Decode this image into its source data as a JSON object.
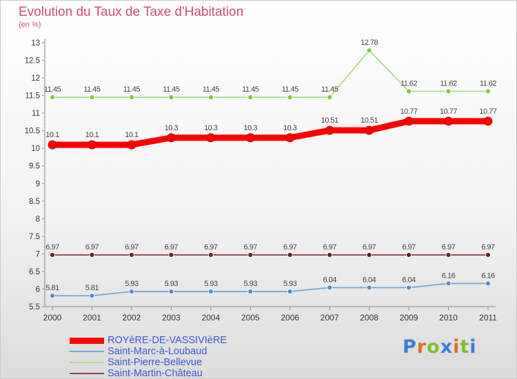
{
  "header": {
    "title": "Evolution du Taux de Taxe d'Habitation",
    "unit": "(en %)"
  },
  "chart_data": {
    "type": "line",
    "title": "Evolution du Taux de Taxe d'Habitation",
    "ylabel": "(en %)",
    "xlabel": "",
    "x": [
      "2000",
      "2001",
      "2002",
      "2003",
      "2004",
      "2005",
      "2006",
      "2007",
      "2008",
      "2009",
      "2010",
      "2011"
    ],
    "ylim": [
      5.5,
      13
    ],
    "yticks": [
      "5.5",
      "6",
      "6.5",
      "7",
      "7.5",
      "8",
      "8.5",
      "9",
      "9.5",
      "10",
      "10.5",
      "11",
      "11.5",
      "12",
      "12.5",
      "13"
    ],
    "grid": false,
    "legend_position": "bottom-left",
    "series": [
      {
        "name": "ROYèRE-DE-VASSIVIèRE",
        "values": [
          10.1,
          10.1,
          10.1,
          10.3,
          10.3,
          10.3,
          10.3,
          10.51,
          10.51,
          10.77,
          10.77,
          10.77
        ],
        "labels": [
          "10.1",
          "10.1",
          "10.1",
          "10.3",
          "10.3",
          "10.3",
          "10.3",
          "10.51",
          "10.51",
          "10.77",
          "10.77",
          "10.77"
        ],
        "color": "#ff0000",
        "marker_color": "#ff0000",
        "highlight": true
      },
      {
        "name": "Saint-Marc-à-Loubaud",
        "values": [
          5.81,
          5.81,
          5.93,
          5.93,
          5.93,
          5.93,
          5.93,
          6.04,
          6.04,
          6.04,
          6.16,
          6.16
        ],
        "labels": [
          "5.81",
          "5.81",
          "5.93",
          "5.93",
          "5.93",
          "5.93",
          "5.93",
          "6.04",
          "6.04",
          "6.04",
          "6.16",
          "6.16"
        ],
        "color": "#7ba7d4",
        "marker_color": "#4d8fd1",
        "highlight": false
      },
      {
        "name": "Saint-Pierre-Bellevue",
        "values": [
          11.45,
          11.45,
          11.45,
          11.45,
          11.45,
          11.45,
          11.45,
          11.45,
          12.78,
          11.62,
          11.62,
          11.62
        ],
        "labels": [
          "11.45",
          "11.45",
          "11.45",
          "11.45",
          "11.45",
          "11.45",
          "11.45",
          "11.45",
          "12.78",
          "11.62",
          "11.62",
          "11.62"
        ],
        "color": "#a8e08a",
        "marker_color": "#7dcc3f",
        "highlight": false
      },
      {
        "name": "Saint-Martin-Château",
        "values": [
          6.97,
          6.97,
          6.97,
          6.97,
          6.97,
          6.97,
          6.97,
          6.97,
          6.97,
          6.97,
          6.97,
          6.97
        ],
        "labels": [
          "6.97",
          "6.97",
          "6.97",
          "6.97",
          "6.97",
          "6.97",
          "6.97",
          "6.97",
          "6.97",
          "6.97",
          "6.97",
          "6.97"
        ],
        "color": "#8a4a4a",
        "marker_color": "#6b1e1e",
        "highlight": false
      }
    ]
  },
  "logo": {
    "letters": [
      "P",
      "r",
      "o",
      "x",
      "i",
      "t",
      "i"
    ],
    "colors": [
      "#3a7fd5",
      "#e0701a",
      "#7dbf2e",
      "#3a7fd5",
      "#e0701a",
      "#7dbf2e",
      "#3a7fd5"
    ]
  },
  "colors": {
    "title": "#d24a7a",
    "axis": "#888888",
    "legend_text": "#3c5ad2"
  }
}
